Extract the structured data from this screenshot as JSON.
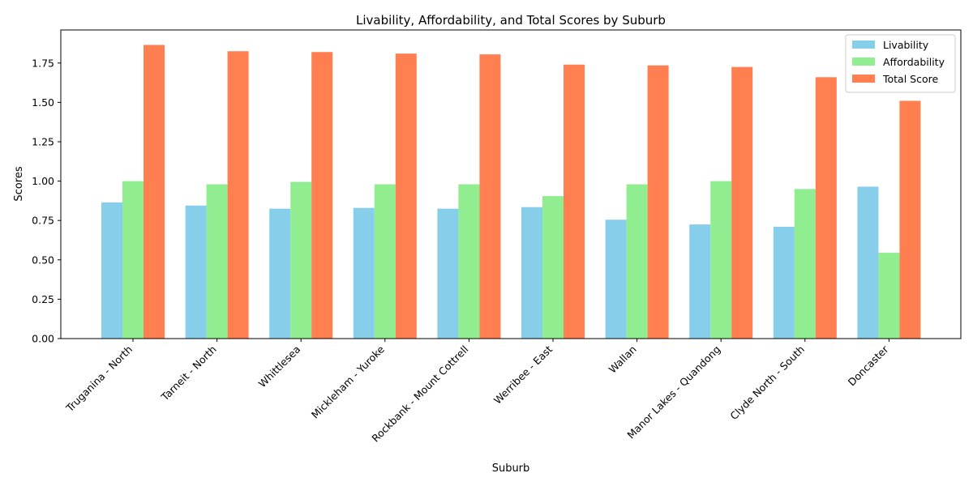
{
  "chart_data": {
    "type": "bar",
    "title": "Livability, Affordability, and Total Scores by Suburb",
    "xlabel": "Suburb",
    "ylabel": "Scores",
    "ylim": [
      0,
      1.96
    ],
    "yticks": [
      0.0,
      0.25,
      0.5,
      0.75,
      1.0,
      1.25,
      1.5,
      1.75
    ],
    "ytick_labels": [
      "0.00",
      "0.25",
      "0.50",
      "0.75",
      "1.00",
      "1.25",
      "1.50",
      "1.75"
    ],
    "grid": false,
    "legend_position": "top-right",
    "categories": [
      "Truganina - North",
      "Tarneit - North",
      "Whittlesea",
      "Mickleham - Yuroke",
      "Rockbank - Mount Cottrell",
      "Werribee - East",
      "Wallan",
      "Manor Lakes - Quandong",
      "Clyde North - South",
      "Doncaster"
    ],
    "series": [
      {
        "name": "Livability",
        "color": "#87ceeb",
        "values": [
          0.865,
          0.845,
          0.825,
          0.83,
          0.825,
          0.835,
          0.755,
          0.725,
          0.71,
          0.965
        ]
      },
      {
        "name": "Affordability",
        "color": "#90ee90",
        "values": [
          1.0,
          0.98,
          0.995,
          0.98,
          0.98,
          0.905,
          0.98,
          1.0,
          0.95,
          0.545
        ]
      },
      {
        "name": "Total Score",
        "color": "#ff7f50",
        "values": [
          1.865,
          1.825,
          1.82,
          1.81,
          1.805,
          1.74,
          1.735,
          1.725,
          1.66,
          1.51
        ]
      }
    ]
  }
}
